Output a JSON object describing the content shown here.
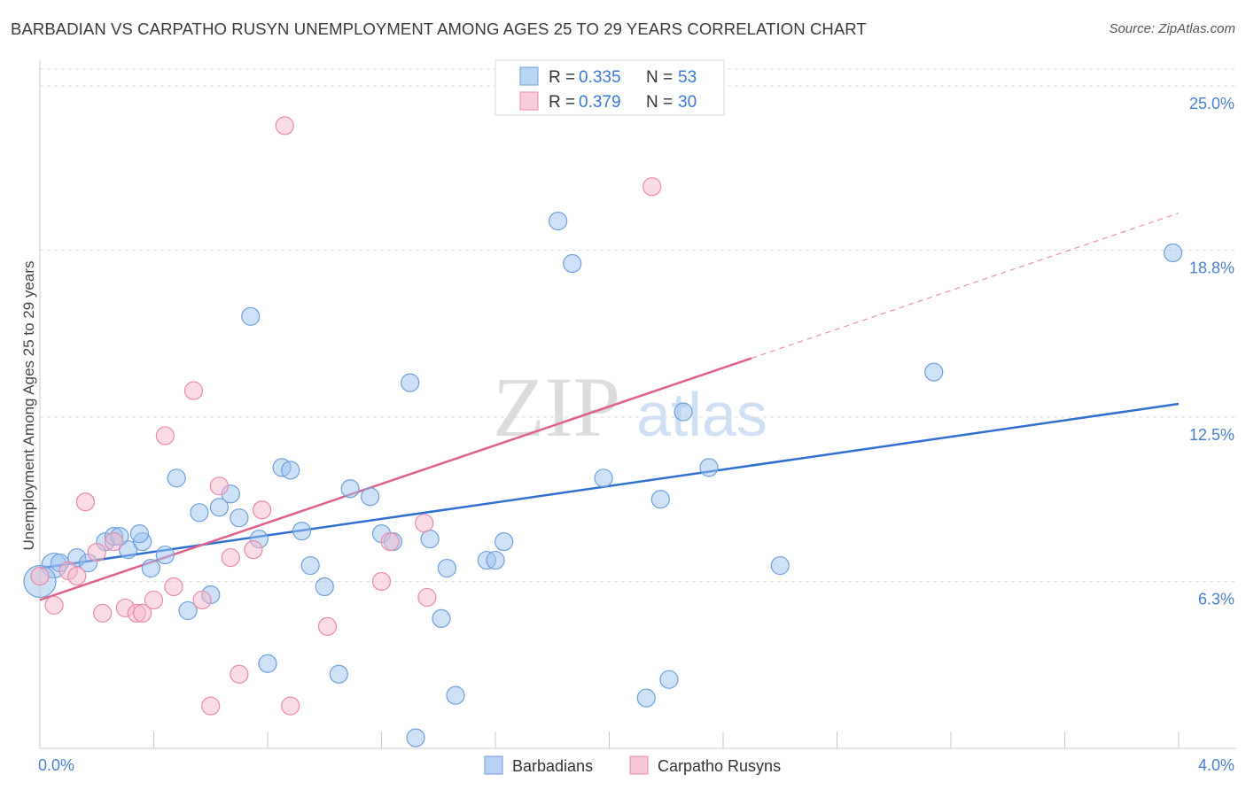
{
  "title": "BARBADIAN VS CARPATHO RUSYN UNEMPLOYMENT AMONG AGES 25 TO 29 YEARS CORRELATION CHART",
  "source": "Source: ZipAtlas.com",
  "watermark": {
    "zip": "ZIP",
    "atlas": "atlas"
  },
  "chart_data": {
    "type": "scatter",
    "xlabel": "",
    "ylabel": "Unemployment Among Ages 25 to 29 years",
    "xlim": [
      0,
      4.0
    ],
    "ylim": [
      0,
      25.0
    ],
    "x_tick_labels": [
      {
        "value": 0,
        "label": "0.0%"
      },
      {
        "value": 4.0,
        "label": "4.0%"
      }
    ],
    "y_tick_labels": [
      {
        "value": 6.3,
        "label": "6.3%"
      },
      {
        "value": 12.5,
        "label": "12.5%"
      },
      {
        "value": 18.8,
        "label": "18.8%"
      },
      {
        "value": 25.0,
        "label": "25.0%"
      }
    ],
    "grid": true,
    "legend_position": "top-center",
    "legend": [
      {
        "r_label": "R =",
        "r_value": "0.335",
        "n_label": "N =",
        "n_value": "53"
      },
      {
        "r_label": "R =",
        "r_value": "0.379",
        "n_label": "N =",
        "n_value": "30"
      }
    ],
    "series": [
      {
        "name": "Barbadians",
        "color": "#9cc3f0",
        "stroke": "#6f9fd8",
        "trend_color": "#2f6fd0",
        "trend": {
          "x0": 0.0,
          "y0": 6.8,
          "x1": 4.0,
          "y1": 13.0,
          "dashed_from": null
        },
        "points": [
          [
            0.05,
            6.9,
            14
          ],
          [
            0.0,
            6.3,
            18
          ],
          [
            0.13,
            7.2,
            10
          ],
          [
            0.17,
            7.0,
            10
          ],
          [
            0.23,
            7.8,
            10
          ],
          [
            0.26,
            8.0,
            10
          ],
          [
            0.31,
            7.5,
            10
          ],
          [
            0.36,
            7.8,
            10
          ],
          [
            0.39,
            6.8,
            10
          ],
          [
            0.28,
            8.0,
            10
          ],
          [
            0.35,
            8.1,
            10
          ],
          [
            0.44,
            7.3,
            10
          ],
          [
            0.48,
            10.2,
            10
          ],
          [
            0.52,
            5.2,
            10
          ],
          [
            0.56,
            8.9,
            10
          ],
          [
            0.6,
            5.8,
            10
          ],
          [
            0.63,
            9.1,
            10
          ],
          [
            0.67,
            9.6,
            10
          ],
          [
            0.7,
            8.7,
            10
          ],
          [
            0.74,
            16.3,
            10
          ],
          [
            0.77,
            7.9,
            10
          ],
          [
            0.8,
            3.2,
            10
          ],
          [
            0.85,
            10.6,
            10
          ],
          [
            0.88,
            10.5,
            10
          ],
          [
            0.92,
            8.2,
            10
          ],
          [
            0.95,
            6.9,
            10
          ],
          [
            1.0,
            6.1,
            10
          ],
          [
            1.05,
            2.8,
            10
          ],
          [
            1.09,
            9.8,
            10
          ],
          [
            1.16,
            9.5,
            10
          ],
          [
            1.2,
            8.1,
            10
          ],
          [
            1.24,
            7.8,
            10
          ],
          [
            1.3,
            13.8,
            10
          ],
          [
            1.32,
            0.4,
            10
          ],
          [
            1.37,
            7.9,
            10
          ],
          [
            1.41,
            4.9,
            10
          ],
          [
            1.43,
            6.8,
            10
          ],
          [
            1.46,
            2.0,
            10
          ],
          [
            1.57,
            7.1,
            10
          ],
          [
            1.6,
            7.1,
            10
          ],
          [
            1.63,
            7.8,
            10
          ],
          [
            1.82,
            19.9,
            10
          ],
          [
            1.87,
            18.3,
            10
          ],
          [
            1.98,
            10.2,
            10
          ],
          [
            2.13,
            1.9,
            10
          ],
          [
            2.18,
            9.4,
            10
          ],
          [
            2.21,
            2.6,
            10
          ],
          [
            2.26,
            12.7,
            10
          ],
          [
            2.35,
            10.6,
            10
          ],
          [
            2.6,
            6.9,
            10
          ],
          [
            3.14,
            14.2,
            10
          ],
          [
            3.98,
            18.7,
            10
          ],
          [
            0.07,
            7.0,
            10
          ]
        ]
      },
      {
        "name": "Carpatho Rusyns",
        "color": "#f7b8cb",
        "stroke": "#e88aa8",
        "trend_color": "#e0608c",
        "trend": {
          "x0": 0.0,
          "y0": 5.6,
          "x1": 4.0,
          "y1": 20.2,
          "dashed_from": 2.5
        },
        "points": [
          [
            0.0,
            6.5,
            10
          ],
          [
            0.05,
            5.4,
            10
          ],
          [
            0.1,
            6.7,
            10
          ],
          [
            0.13,
            6.5,
            10
          ],
          [
            0.16,
            9.3,
            10
          ],
          [
            0.2,
            7.4,
            10
          ],
          [
            0.22,
            5.1,
            10
          ],
          [
            0.26,
            7.8,
            10
          ],
          [
            0.3,
            5.3,
            10
          ],
          [
            0.34,
            5.1,
            10
          ],
          [
            0.36,
            5.1,
            10
          ],
          [
            0.4,
            5.6,
            10
          ],
          [
            0.44,
            11.8,
            10
          ],
          [
            0.47,
            6.1,
            10
          ],
          [
            0.54,
            13.5,
            10
          ],
          [
            0.57,
            5.6,
            10
          ],
          [
            0.6,
            1.6,
            10
          ],
          [
            0.63,
            9.9,
            10
          ],
          [
            0.67,
            7.2,
            10
          ],
          [
            0.7,
            2.8,
            10
          ],
          [
            0.75,
            7.5,
            10
          ],
          [
            0.78,
            9.0,
            10
          ],
          [
            0.86,
            23.5,
            10
          ],
          [
            0.88,
            1.6,
            10
          ],
          [
            1.01,
            4.6,
            10
          ],
          [
            1.2,
            6.3,
            10
          ],
          [
            1.23,
            7.8,
            10
          ],
          [
            1.35,
            8.5,
            10
          ],
          [
            1.36,
            5.7,
            10
          ],
          [
            2.15,
            21.2,
            10
          ]
        ]
      }
    ]
  },
  "bottom_legend": [
    {
      "label": "Barbadians",
      "color": "#b7d2f4",
      "stroke": "#6f9fd8"
    },
    {
      "label": "Carpatho Rusyns",
      "color": "#f9c8d7",
      "stroke": "#e88aa8"
    }
  ]
}
